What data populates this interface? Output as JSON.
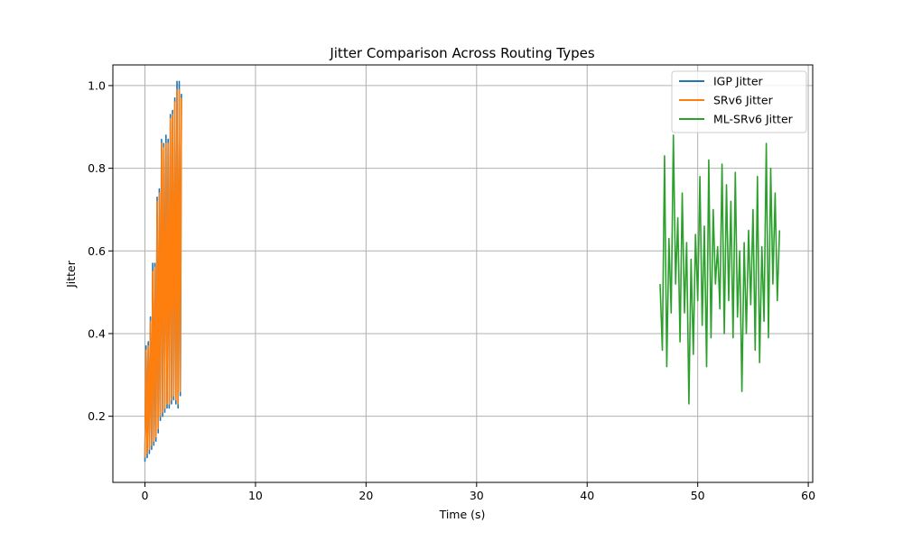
{
  "chart_data": {
    "type": "line",
    "title": "Jitter Comparison Across Routing Types",
    "xlabel": "Time (s)",
    "ylabel": "Jitter",
    "xlim": [
      -2.9,
      60.4
    ],
    "ylim": [
      0.04,
      1.05
    ],
    "x_ticks": [
      0,
      10,
      20,
      30,
      40,
      50,
      60
    ],
    "y_ticks": [
      0.2,
      0.4,
      0.6,
      0.8,
      1.0
    ],
    "x_tick_labels": [
      "0",
      "10",
      "20",
      "30",
      "40",
      "50",
      "60"
    ],
    "y_tick_labels": [
      "0.2",
      "0.4",
      "0.6",
      "0.8",
      "1.0"
    ],
    "grid": true,
    "legend_position": "top-right",
    "series": [
      {
        "name": "IGP Jitter",
        "color": "#1f77b4",
        "x": [
          0.0,
          0.1,
          0.2,
          0.3,
          0.4,
          0.5,
          0.6,
          0.7,
          0.8,
          0.9,
          1.0,
          1.1,
          1.2,
          1.3,
          1.4,
          1.5,
          1.6,
          1.7,
          1.8,
          1.9,
          2.0,
          2.1,
          2.2,
          2.3,
          2.4,
          2.5,
          2.6,
          2.7,
          2.8,
          2.9,
          3.0,
          3.1,
          3.2,
          3.3
        ],
        "y": [
          0.09,
          0.37,
          0.1,
          0.38,
          0.11,
          0.44,
          0.12,
          0.57,
          0.13,
          0.57,
          0.14,
          0.73,
          0.16,
          0.75,
          0.19,
          0.87,
          0.2,
          0.86,
          0.21,
          0.88,
          0.22,
          0.87,
          0.22,
          0.93,
          0.23,
          0.94,
          0.24,
          0.97,
          0.23,
          1.01,
          0.22,
          1.01,
          0.25,
          0.98
        ]
      },
      {
        "name": "SRv6 Jitter",
        "color": "#ff7f0e",
        "x": [
          0.0,
          0.1,
          0.2,
          0.3,
          0.4,
          0.5,
          0.6,
          0.7,
          0.8,
          0.9,
          1.0,
          1.1,
          1.2,
          1.3,
          1.4,
          1.5,
          1.6,
          1.7,
          1.8,
          1.9,
          2.0,
          2.1,
          2.2,
          2.3,
          2.4,
          2.5,
          2.6,
          2.7,
          2.8,
          2.9,
          3.0,
          3.1,
          3.2,
          3.3
        ],
        "y": [
          0.1,
          0.36,
          0.11,
          0.37,
          0.12,
          0.43,
          0.13,
          0.55,
          0.14,
          0.56,
          0.15,
          0.72,
          0.17,
          0.74,
          0.2,
          0.86,
          0.21,
          0.85,
          0.22,
          0.86,
          0.23,
          0.86,
          0.23,
          0.92,
          0.24,
          0.93,
          0.25,
          0.96,
          0.24,
          0.99,
          0.23,
          0.99,
          0.26,
          0.97
        ]
      },
      {
        "name": "ML-SRv6 Jitter",
        "color": "#2ca02c",
        "x": [
          46.6,
          46.8,
          47.0,
          47.2,
          47.4,
          47.6,
          47.8,
          48.0,
          48.2,
          48.4,
          48.6,
          48.8,
          49.0,
          49.2,
          49.4,
          49.6,
          49.8,
          50.0,
          50.2,
          50.4,
          50.6,
          50.8,
          51.0,
          51.2,
          51.4,
          51.6,
          51.8,
          52.0,
          52.2,
          52.4,
          52.6,
          52.8,
          53.0,
          53.2,
          53.4,
          53.6,
          53.8,
          54.0,
          54.2,
          54.4,
          54.6,
          54.8,
          55.0,
          55.2,
          55.4,
          55.6,
          55.8,
          56.0,
          56.2,
          56.4,
          56.6,
          56.8,
          57.0,
          57.2,
          57.4
        ],
        "y": [
          0.52,
          0.36,
          0.83,
          0.32,
          0.63,
          0.45,
          0.88,
          0.52,
          0.68,
          0.38,
          0.74,
          0.45,
          0.62,
          0.23,
          0.58,
          0.35,
          0.64,
          0.48,
          0.78,
          0.42,
          0.66,
          0.32,
          0.82,
          0.39,
          0.7,
          0.52,
          0.61,
          0.46,
          0.81,
          0.4,
          0.76,
          0.48,
          0.72,
          0.39,
          0.79,
          0.44,
          0.6,
          0.26,
          0.62,
          0.4,
          0.65,
          0.47,
          0.7,
          0.36,
          0.78,
          0.33,
          0.61,
          0.43,
          0.86,
          0.39,
          0.8,
          0.52,
          0.74,
          0.48,
          0.65
        ]
      }
    ]
  }
}
